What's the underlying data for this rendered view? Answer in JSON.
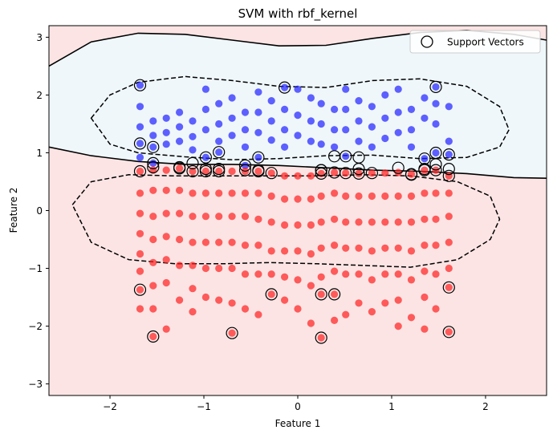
{
  "chart_data": {
    "type": "scatter",
    "title": "SVM with rbf_kernel",
    "xlabel": "Feature 1",
    "ylabel": "Feature 2",
    "xlim": [
      -2.65,
      2.65
    ],
    "ylim": [
      -3.2,
      3.2
    ],
    "xticks": [
      -2,
      -1,
      0,
      1,
      2
    ],
    "xtick_labels": [
      "−2",
      "−1",
      "0",
      "1",
      "2"
    ],
    "yticks": [
      -3,
      -2,
      -1,
      0,
      1,
      2,
      3
    ],
    "ytick_labels": [
      "−3",
      "−2",
      "−1",
      "0",
      "1",
      "2",
      "3"
    ],
    "grid": false,
    "legend": {
      "placement": "top-right",
      "entries": [
        "Support Vectors"
      ]
    },
    "x_columns": [
      -1.68,
      -1.54,
      -1.4,
      -1.26,
      -1.12,
      -0.98,
      -0.84,
      -0.7,
      -0.56,
      -0.42,
      -0.28,
      -0.14,
      0.0,
      0.14,
      0.25,
      0.39,
      0.51,
      0.65,
      0.79,
      0.93,
      1.07,
      1.21,
      1.35,
      1.47,
      1.61
    ],
    "series": [
      {
        "name": "",
        "color": "#1f1fff",
        "x": [
          -1.68,
          -1.68,
          -1.68,
          -1.68,
          -1.68,
          -1.54,
          -1.54,
          -1.54,
          -1.54,
          -1.4,
          -1.4,
          -1.4,
          -1.26,
          -1.26,
          -1.26,
          -1.12,
          -1.12,
          -1.12,
          -0.98,
          -0.98,
          -0.98,
          -0.98,
          -0.84,
          -0.84,
          -0.84,
          -0.84,
          -0.7,
          -0.7,
          -0.7,
          -0.56,
          -0.56,
          -0.56,
          -0.56,
          -0.42,
          -0.42,
          -0.42,
          -0.42,
          -0.28,
          -0.28,
          -0.28,
          -0.14,
          -0.14,
          -0.14,
          -0.14,
          0.0,
          0.0,
          0.0,
          0.14,
          0.14,
          0.14,
          0.25,
          0.25,
          0.25,
          0.39,
          0.39,
          0.39,
          0.51,
          0.51,
          0.51,
          0.51,
          0.65,
          0.65,
          0.65,
          0.79,
          0.79,
          0.79,
          0.93,
          0.93,
          0.93,
          1.07,
          1.07,
          1.07,
          1.21,
          1.21,
          1.21,
          1.35,
          1.35,
          1.35,
          1.47,
          1.47,
          1.47,
          1.47,
          1.61,
          1.61,
          1.61
        ],
        "y": [
          2.17,
          1.8,
          1.45,
          1.16,
          0.92,
          1.55,
          1.3,
          1.1,
          0.82,
          1.6,
          1.35,
          1.15,
          1.7,
          1.45,
          1.2,
          1.55,
          1.28,
          1.05,
          2.1,
          1.75,
          1.4,
          0.92,
          1.85,
          1.5,
          1.2,
          1.01,
          1.95,
          1.6,
          1.3,
          1.7,
          1.4,
          1.1,
          0.78,
          2.05,
          1.7,
          1.35,
          0.92,
          1.9,
          1.55,
          1.22,
          2.13,
          1.75,
          1.4,
          1.1,
          2.1,
          1.65,
          1.3,
          1.95,
          1.55,
          1.2,
          1.85,
          1.5,
          1.15,
          1.75,
          1.4,
          1.1,
          2.1,
          1.75,
          1.4,
          0.94,
          1.9,
          1.55,
          1.2,
          1.8,
          1.45,
          1.1,
          2.0,
          1.6,
          1.25,
          2.1,
          1.7,
          1.35,
          1.75,
          1.4,
          1.1,
          1.95,
          1.6,
          0.9,
          2.14,
          1.85,
          1.5,
          1.0,
          1.8,
          1.2,
          0.97
        ]
      },
      {
        "name": "",
        "color": "#ff1f1f",
        "x": [
          -1.68,
          -1.68,
          -1.68,
          -1.68,
          -1.68,
          -1.68,
          -1.68,
          -1.68,
          -1.54,
          -1.54,
          -1.54,
          -1.54,
          -1.54,
          -1.54,
          -1.54,
          -1.54,
          -1.4,
          -1.4,
          -1.4,
          -1.4,
          -1.4,
          -1.4,
          -1.4,
          -1.26,
          -1.26,
          -1.26,
          -1.26,
          -1.26,
          -1.26,
          -1.12,
          -1.12,
          -1.12,
          -1.12,
          -1.12,
          -1.12,
          -1.12,
          -0.98,
          -0.98,
          -0.98,
          -0.98,
          -0.98,
          -0.98,
          -0.84,
          -0.84,
          -0.84,
          -0.84,
          -0.84,
          -0.84,
          -0.7,
          -0.7,
          -0.7,
          -0.7,
          -0.7,
          -0.7,
          -0.7,
          -0.56,
          -0.56,
          -0.56,
          -0.56,
          -0.56,
          -0.56,
          -0.42,
          -0.42,
          -0.42,
          -0.42,
          -0.42,
          -0.42,
          -0.28,
          -0.28,
          -0.28,
          -0.28,
          -0.28,
          -0.28,
          -0.14,
          -0.14,
          -0.14,
          -0.14,
          -0.14,
          -0.14,
          0.0,
          0.0,
          0.0,
          0.0,
          0.0,
          0.0,
          0.14,
          0.14,
          0.14,
          0.14,
          0.14,
          0.14,
          0.25,
          0.25,
          0.25,
          0.25,
          0.25,
          0.25,
          0.25,
          0.39,
          0.39,
          0.39,
          0.39,
          0.39,
          0.39,
          0.39,
          0.51,
          0.51,
          0.51,
          0.51,
          0.51,
          0.51,
          0.65,
          0.65,
          0.65,
          0.65,
          0.65,
          0.65,
          0.79,
          0.79,
          0.79,
          0.79,
          0.79,
          0.79,
          0.93,
          0.93,
          0.93,
          0.93,
          0.93,
          0.93,
          1.07,
          1.07,
          1.07,
          1.07,
          1.07,
          1.07,
          1.07,
          1.21,
          1.21,
          1.21,
          1.21,
          1.21,
          1.21,
          1.35,
          1.35,
          1.35,
          1.35,
          1.35,
          1.35,
          1.35,
          1.47,
          1.47,
          1.47,
          1.47,
          1.47,
          1.47,
          1.61,
          1.61,
          1.61,
          1.61,
          1.61,
          1.61,
          1.61
        ],
        "y": [
          0.68,
          0.3,
          -0.05,
          -0.4,
          -0.75,
          -1.05,
          -1.37,
          -1.7,
          0.7,
          0.35,
          -0.1,
          -0.5,
          -0.9,
          -1.3,
          -1.7,
          -2.18,
          0.7,
          0.35,
          -0.05,
          -0.45,
          -0.85,
          -1.25,
          -2.05,
          0.73,
          0.35,
          -0.05,
          -0.5,
          -0.95,
          -1.55,
          0.68,
          0.3,
          -0.1,
          -0.55,
          -0.95,
          -1.35,
          -1.75,
          0.68,
          0.3,
          -0.1,
          -0.55,
          -1.0,
          -1.5,
          0.68,
          0.3,
          -0.1,
          -0.55,
          -1.0,
          -1.55,
          0.68,
          0.3,
          -0.1,
          -0.55,
          -1.0,
          -1.6,
          -2.12,
          0.68,
          0.3,
          -0.1,
          -0.6,
          -1.1,
          -1.7,
          0.68,
          0.3,
          -0.15,
          -0.6,
          -1.1,
          -1.8,
          0.65,
          0.25,
          -0.2,
          -0.7,
          -1.1,
          -1.45,
          0.6,
          0.2,
          -0.25,
          -0.7,
          -1.15,
          -1.55,
          0.6,
          0.2,
          -0.25,
          -0.7,
          -1.2,
          -1.7,
          0.6,
          0.2,
          -0.25,
          -0.75,
          -1.3,
          -1.95,
          0.64,
          0.25,
          -0.2,
          -0.65,
          -1.15,
          -1.45,
          -2.2,
          0.66,
          0.3,
          -0.15,
          -0.6,
          -1.05,
          -1.45,
          -1.9,
          0.65,
          0.25,
          -0.2,
          -0.65,
          -1.1,
          -1.8,
          0.64,
          0.25,
          -0.2,
          -0.65,
          -1.1,
          -1.6,
          0.65,
          0.25,
          -0.2,
          -0.7,
          -1.2,
          -1.75,
          0.65,
          0.25,
          -0.2,
          -0.65,
          -1.1,
          -1.6,
          0.66,
          0.25,
          -0.2,
          -0.65,
          -1.1,
          -1.55,
          -2.0,
          0.63,
          0.25,
          -0.2,
          -0.7,
          -1.2,
          -1.85,
          0.7,
          0.3,
          -0.15,
          -0.6,
          -1.05,
          -1.5,
          -2.05,
          0.7,
          0.3,
          -0.15,
          -0.6,
          -1.1,
          -1.7,
          0.6,
          0.3,
          -0.1,
          -0.55,
          -1.0,
          -1.33,
          -2.1
        ]
      }
    ],
    "support_vectors": {
      "name": "Support Vectors",
      "x": [
        -1.68,
        -1.68,
        -1.54,
        -1.54,
        -1.26,
        -1.12,
        -0.98,
        -0.98,
        -0.84,
        -0.84,
        -0.56,
        -0.42,
        -0.42,
        -0.14,
        0.25,
        0.39,
        0.51,
        0.65,
        0.65,
        1.07,
        1.21,
        1.35,
        1.35,
        1.47,
        1.47,
        1.47,
        1.61,
        1.61,
        -1.68,
        -1.54,
        -1.26,
        -1.12,
        -0.98,
        -0.84,
        -0.56,
        -0.42,
        -0.28,
        0.25,
        0.25,
        0.39,
        0.51,
        0.65,
        0.79,
        1.21,
        1.35,
        1.47,
        1.61,
        -1.68,
        -1.54,
        -0.7,
        -0.28,
        0.25,
        0.25,
        0.39,
        1.61,
        1.61
      ],
      "y": [
        2.17,
        1.16,
        1.1,
        0.82,
        0.75,
        0.82,
        0.92,
        0.72,
        1.01,
        0.72,
        0.78,
        0.92,
        0.7,
        2.13,
        0.7,
        0.94,
        0.94,
        0.72,
        0.92,
        0.74,
        0.62,
        0.72,
        0.9,
        2.14,
        1.0,
        0.8,
        0.97,
        0.72,
        0.68,
        0.75,
        0.73,
        0.68,
        0.68,
        0.68,
        0.7,
        0.68,
        0.65,
        0.64,
        0.7,
        0.66,
        0.65,
        0.64,
        0.65,
        0.63,
        0.7,
        0.7,
        0.6,
        -1.37,
        -2.18,
        -2.12,
        -1.45,
        -1.45,
        -2.2,
        -1.45,
        -1.33,
        -2.1
      ]
    },
    "boundary_top_x": [
      -2.65,
      -2.2,
      -1.7,
      -1.2,
      -0.7,
      -0.2,
      0.3,
      0.8,
      1.3,
      1.8,
      2.3,
      2.65
    ],
    "boundary_top_y": [
      2.5,
      2.92,
      3.07,
      3.05,
      2.95,
      2.85,
      2.86,
      2.98,
      3.08,
      3.12,
      3.05,
      2.95
    ],
    "boundary_bottom_x": [
      -2.65,
      -2.2,
      -1.7,
      -1.2,
      -0.7,
      -0.2,
      0.3,
      0.8,
      1.3,
      1.8,
      2.3,
      2.65
    ],
    "boundary_bottom_y": [
      1.1,
      0.95,
      0.85,
      0.8,
      0.8,
      0.78,
      0.74,
      0.7,
      0.68,
      0.64,
      0.57,
      0.56
    ],
    "margin_upper_x": [
      -2.2,
      -2.0,
      -1.7,
      -1.2,
      -0.7,
      -0.2,
      0.3,
      0.8,
      1.3,
      1.8,
      2.15,
      2.25,
      2.15,
      1.8,
      1.3,
      0.8,
      0.3,
      -0.2,
      -0.7,
      -1.2,
      -1.7,
      -2.0,
      -2.2
    ],
    "margin_upper_y": [
      1.6,
      2.0,
      2.22,
      2.32,
      2.25,
      2.15,
      2.13,
      2.25,
      2.28,
      2.15,
      1.8,
      1.4,
      1.1,
      0.92,
      0.9,
      0.96,
      0.95,
      0.9,
      0.88,
      0.93,
      1.0,
      1.15,
      1.6
    ],
    "margin_lower_x": [
      -2.4,
      -2.2,
      -1.8,
      -1.3,
      -0.8,
      -0.3,
      0.2,
      0.7,
      1.2,
      1.7,
      2.05,
      2.15,
      2.05,
      1.7,
      1.2,
      0.7,
      0.2,
      -0.3,
      -0.8,
      -1.3,
      -1.8,
      -2.2,
      -2.4
    ],
    "margin_lower_y": [
      0.1,
      0.5,
      0.62,
      0.6,
      0.6,
      0.6,
      0.6,
      0.62,
      0.6,
      0.5,
      0.25,
      -0.15,
      -0.5,
      -0.85,
      -0.98,
      -0.95,
      -0.92,
      -0.9,
      -0.92,
      -0.92,
      -0.85,
      -0.55,
      0.1
    ],
    "colors": {
      "class_pos_region": "#eff7fb",
      "class_neg_region": "#fce4e4",
      "boundary": "#000000"
    }
  }
}
